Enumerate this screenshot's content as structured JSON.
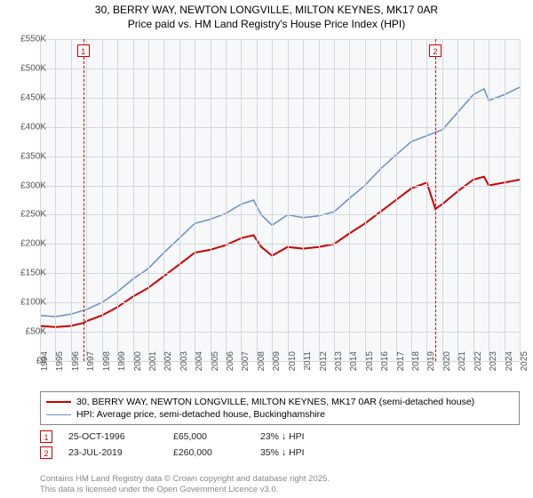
{
  "title": {
    "line1": "30, BERRY WAY, NEWTON LONGVILLE, MILTON KEYNES, MK17 0AR",
    "line2": "Price paid vs. HM Land Registry's House Price Index (HPI)"
  },
  "chart": {
    "type": "line",
    "plot_bg": "#f6f8fa",
    "grid_color": "#d5d8db",
    "x": {
      "min": 1994,
      "max": 2025,
      "ticks": [
        1994,
        1995,
        1996,
        1997,
        1998,
        1999,
        2000,
        2001,
        2002,
        2003,
        2004,
        2005,
        2006,
        2007,
        2008,
        2009,
        2010,
        2011,
        2012,
        2013,
        2014,
        2015,
        2016,
        2017,
        2018,
        2019,
        2020,
        2021,
        2022,
        2023,
        2024,
        2025
      ]
    },
    "y": {
      "min": 0,
      "max": 550,
      "unit_suffix": "K",
      "prefix": "£",
      "ticks": [
        0,
        50,
        100,
        150,
        200,
        250,
        300,
        350,
        400,
        450,
        500,
        550
      ]
    },
    "series": [
      {
        "id": "price_paid",
        "label": "30, BERRY WAY, NEWTON LONGVILLE, MILTON KEYNES, MK17 0AR (semi-detached house)",
        "color": "#cc0000",
        "width": 2,
        "points": [
          [
            1994,
            60
          ],
          [
            1995,
            58
          ],
          [
            1996,
            60
          ],
          [
            1996.8,
            65
          ],
          [
            1997,
            68
          ],
          [
            1998,
            78
          ],
          [
            1999,
            92
          ],
          [
            2000,
            110
          ],
          [
            2001,
            125
          ],
          [
            2002,
            145
          ],
          [
            2003,
            165
          ],
          [
            2004,
            185
          ],
          [
            2005,
            190
          ],
          [
            2006,
            198
          ],
          [
            2007,
            210
          ],
          [
            2007.8,
            215
          ],
          [
            2008.3,
            195
          ],
          [
            2009,
            180
          ],
          [
            2010,
            195
          ],
          [
            2011,
            192
          ],
          [
            2012,
            195
          ],
          [
            2013,
            200
          ],
          [
            2014,
            218
          ],
          [
            2015,
            235
          ],
          [
            2016,
            255
          ],
          [
            2017,
            275
          ],
          [
            2018,
            295
          ],
          [
            2019,
            305
          ],
          [
            2019.55,
            260
          ],
          [
            2020,
            268
          ],
          [
            2021,
            290
          ],
          [
            2022,
            310
          ],
          [
            2022.7,
            315
          ],
          [
            2023,
            300
          ],
          [
            2024,
            305
          ],
          [
            2025,
            310
          ]
        ]
      },
      {
        "id": "hpi",
        "label": "HPI: Average price, semi-detached house, Buckinghamshire",
        "color": "#6a8fc5",
        "width": 1.5,
        "points": [
          [
            1994,
            78
          ],
          [
            1995,
            76
          ],
          [
            1996,
            80
          ],
          [
            1997,
            88
          ],
          [
            1998,
            100
          ],
          [
            1999,
            118
          ],
          [
            2000,
            140
          ],
          [
            2001,
            158
          ],
          [
            2002,
            185
          ],
          [
            2003,
            210
          ],
          [
            2004,
            235
          ],
          [
            2005,
            242
          ],
          [
            2006,
            252
          ],
          [
            2007,
            268
          ],
          [
            2007.8,
            275
          ],
          [
            2008.3,
            250
          ],
          [
            2009,
            232
          ],
          [
            2010,
            250
          ],
          [
            2011,
            245
          ],
          [
            2012,
            248
          ],
          [
            2013,
            255
          ],
          [
            2014,
            278
          ],
          [
            2015,
            300
          ],
          [
            2016,
            328
          ],
          [
            2017,
            352
          ],
          [
            2018,
            375
          ],
          [
            2019,
            385
          ],
          [
            2020,
            395
          ],
          [
            2021,
            425
          ],
          [
            2022,
            455
          ],
          [
            2022.7,
            465
          ],
          [
            2023,
            445
          ],
          [
            2024,
            455
          ],
          [
            2025,
            468
          ]
        ]
      }
    ],
    "events": [
      {
        "n": "1",
        "x": 1996.8
      },
      {
        "n": "2",
        "x": 2019.55
      }
    ]
  },
  "legend": {
    "rows": [
      {
        "color": "#cc0000",
        "width": 2,
        "label": "30, BERRY WAY, NEWTON LONGVILLE, MILTON KEYNES, MK17 0AR (semi-detached house)"
      },
      {
        "color": "#6a8fc5",
        "width": 1.5,
        "label": "HPI: Average price, semi-detached house, Buckinghamshire"
      }
    ]
  },
  "transactions": [
    {
      "n": "1",
      "date": "25-OCT-1996",
      "price": "£65,000",
      "delta": "23% ↓ HPI"
    },
    {
      "n": "2",
      "date": "23-JUL-2019",
      "price": "£260,000",
      "delta": "35% ↓ HPI"
    }
  ],
  "attribution": {
    "line1": "Contains HM Land Registry data © Crown copyright and database right 2025.",
    "line2": "This data is licensed under the Open Government Licence v3.0."
  }
}
